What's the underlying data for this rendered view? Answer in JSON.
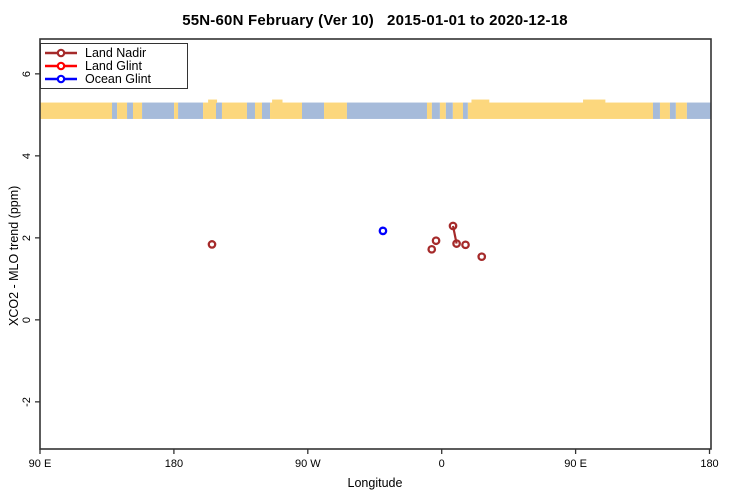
{
  "title": "55N-60N February (Ver 10)   2015-01-01 to 2020-12-18",
  "legend": {
    "items": [
      {
        "label": "Land Nadir",
        "color": "#A52A2A"
      },
      {
        "label": "Land Glint",
        "color": "#FF0000"
      },
      {
        "label": "Ocean Glint",
        "color": "#0000FF"
      }
    ]
  },
  "colors": {
    "axis": "#333333",
    "land": "#FCD77D",
    "ocean": "#A6BBDA",
    "background": "#FFFFFF"
  },
  "chart_data": {
    "type": "scatter",
    "title": "55N-60N February (Ver 10)   2015-01-01 to 2020-12-18",
    "xlabel": "Longitude",
    "ylabel": "XCO2 - MLO trend (ppm)",
    "xlim": [
      90,
      541
    ],
    "ylim": [
      -3.15,
      6.85
    ],
    "x_axis_note": "Longitude axis starts at 90E and wraps eastward through 180, 90W, 0, 90E to 180",
    "x_ticks": [
      {
        "value": 90,
        "label": "90 E"
      },
      {
        "value": 180,
        "label": "180"
      },
      {
        "value": 270,
        "label": "90 W"
      },
      {
        "value": 360,
        "label": "0"
      },
      {
        "value": 450,
        "label": "90 E"
      },
      {
        "value": 540,
        "label": "180"
      }
    ],
    "y_ticks": [
      {
        "value": -2,
        "label": "-2"
      },
      {
        "value": 0,
        "label": "0"
      },
      {
        "value": 2,
        "label": "2"
      },
      {
        "value": 4,
        "label": "4"
      },
      {
        "value": 6,
        "label": "6"
      }
    ],
    "grid": false,
    "legend_position": "top-left",
    "series": [
      {
        "name": "Land Nadir",
        "color": "#A52A2A",
        "marker": "open-circle",
        "points": [
          {
            "x": 205.6,
            "y": 1.84,
            "longitude": "154.4 W"
          },
          {
            "x": 353.3,
            "y": 1.72,
            "longitude": "6.7 W"
          },
          {
            "x": 356.2,
            "y": 1.93,
            "longitude": "3.8 W"
          },
          {
            "x": 367.6,
            "y": 2.29,
            "longitude": "7.6 E"
          },
          {
            "x": 370.0,
            "y": 1.86,
            "longitude": "10.0 E"
          },
          {
            "x": 376.0,
            "y": 1.83,
            "longitude": "16.0 E"
          },
          {
            "x": 386.9,
            "y": 1.54,
            "longitude": "26.9 E"
          }
        ],
        "connected_point_indices": [
          [
            3,
            4
          ]
        ]
      },
      {
        "name": "Land Glint",
        "color": "#FF0000",
        "marker": "open-circle",
        "points": [],
        "connected_point_indices": []
      },
      {
        "name": "Ocean Glint",
        "color": "#0000FF",
        "marker": "open-circle",
        "points": [
          {
            "x": 320.5,
            "y": 2.17,
            "longitude": "39.5 W"
          }
        ],
        "connected_point_indices": []
      }
    ],
    "map_strip": {
      "description": "World coastline band for 55N-60N drawn across the plot near y=5; tan = land, blue-gray = ocean",
      "y_range": [
        4.9,
        5.3
      ],
      "land_color": "#FCD77D",
      "ocean_color": "#A6BBDA",
      "segments": [
        {
          "from": 90.0,
          "to": 138.4,
          "surface": "land"
        },
        {
          "from": 138.4,
          "to": 141.8,
          "surface": "ocean"
        },
        {
          "from": 141.8,
          "to": 148.5,
          "surface": "land"
        },
        {
          "from": 148.5,
          "to": 152.5,
          "surface": "ocean"
        },
        {
          "from": 152.5,
          "to": 158.6,
          "surface": "land"
        },
        {
          "from": 158.6,
          "to": 180.1,
          "surface": "ocean"
        },
        {
          "from": 180.1,
          "to": 182.8,
          "surface": "land"
        },
        {
          "from": 182.8,
          "to": 199.6,
          "surface": "ocean"
        },
        {
          "from": 199.6,
          "to": 208.3,
          "surface": "land"
        },
        {
          "from": 208.3,
          "to": 212.3,
          "surface": "ocean"
        },
        {
          "from": 212.3,
          "to": 229.1,
          "surface": "land"
        },
        {
          "from": 229.1,
          "to": 234.5,
          "surface": "ocean"
        },
        {
          "from": 234.5,
          "to": 239.2,
          "surface": "land"
        },
        {
          "from": 239.2,
          "to": 244.6,
          "surface": "ocean"
        },
        {
          "from": 244.6,
          "to": 266.1,
          "surface": "land"
        },
        {
          "from": 266.1,
          "to": 280.9,
          "surface": "ocean"
        },
        {
          "from": 280.9,
          "to": 296.3,
          "surface": "land"
        },
        {
          "from": 296.3,
          "to": 350.1,
          "surface": "ocean"
        },
        {
          "from": 350.1,
          "to": 353.4,
          "surface": "land"
        },
        {
          "from": 353.4,
          "to": 358.8,
          "surface": "ocean"
        },
        {
          "from": 358.8,
          "to": 362.8,
          "surface": "land"
        },
        {
          "from": 362.8,
          "to": 367.5,
          "surface": "ocean"
        },
        {
          "from": 367.5,
          "to": 374.3,
          "surface": "land"
        },
        {
          "from": 374.3,
          "to": 377.6,
          "surface": "ocean"
        },
        {
          "from": 377.6,
          "to": 502.0,
          "surface": "land"
        },
        {
          "from": 502.0,
          "to": 506.7,
          "surface": "ocean"
        },
        {
          "from": 506.7,
          "to": 513.4,
          "surface": "land"
        },
        {
          "from": 513.4,
          "to": 517.4,
          "surface": "ocean"
        },
        {
          "from": 517.4,
          "to": 524.8,
          "surface": "land"
        },
        {
          "from": 524.8,
          "to": 541.0,
          "surface": "ocean"
        }
      ],
      "bumps": [
        {
          "from": 203.0,
          "to": 209.0
        },
        {
          "from": 246.0,
          "to": 253.0
        },
        {
          "from": 380.0,
          "to": 392.0
        },
        {
          "from": 455.0,
          "to": 470.0
        }
      ]
    }
  }
}
